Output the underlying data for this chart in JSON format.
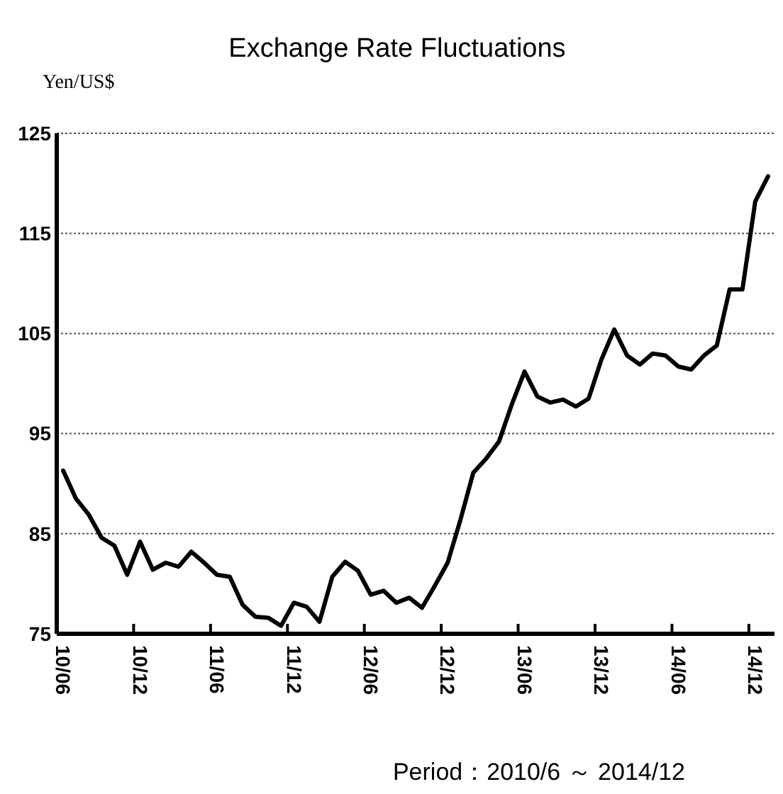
{
  "chart_data": {
    "type": "line",
    "title": "Exchange Rate Fluctuations",
    "ylabel": "Yen/US$",
    "xlabel": "Period：2010/6 ～ 2014/12",
    "categories": [
      "10/06",
      null,
      null,
      null,
      null,
      null,
      "10/12",
      null,
      null,
      null,
      null,
      null,
      "11/06",
      null,
      null,
      null,
      null,
      null,
      "11/12",
      null,
      null,
      null,
      null,
      null,
      "12/06",
      null,
      null,
      null,
      null,
      null,
      "12/12",
      null,
      null,
      null,
      null,
      null,
      "13/06",
      null,
      null,
      null,
      null,
      null,
      "13/12",
      null,
      null,
      null,
      null,
      null,
      "14/06",
      null,
      null,
      null,
      null,
      null,
      "14/12",
      null
    ],
    "series": [
      {
        "color": "#000000",
        "values": [
          91.3,
          88.5,
          86.9,
          84.6,
          83.8,
          80.9,
          84.2,
          81.4,
          82.1,
          81.7,
          83.2,
          82.1,
          80.9,
          80.7,
          77.9,
          76.7,
          76.6,
          75.8,
          78.1,
          77.7,
          76.2,
          80.7,
          82.2,
          81.3,
          78.9,
          79.3,
          78.1,
          78.6,
          77.6,
          79.8,
          82.1,
          86.4,
          91.1,
          92.5,
          94.2,
          97.9,
          101.2,
          98.7,
          98.1,
          98.4,
          97.7,
          98.5,
          102.4,
          105.4,
          102.8,
          101.9,
          103.0,
          102.8,
          101.7,
          101.4,
          102.8,
          103.8,
          109.4,
          109.4,
          118.2,
          120.7
        ]
      }
    ],
    "ylim": [
      75,
      125
    ],
    "yticks": [
      75,
      85,
      95,
      105,
      115,
      125
    ],
    "grid": "y",
    "marker": "none",
    "line_style": "solid"
  }
}
